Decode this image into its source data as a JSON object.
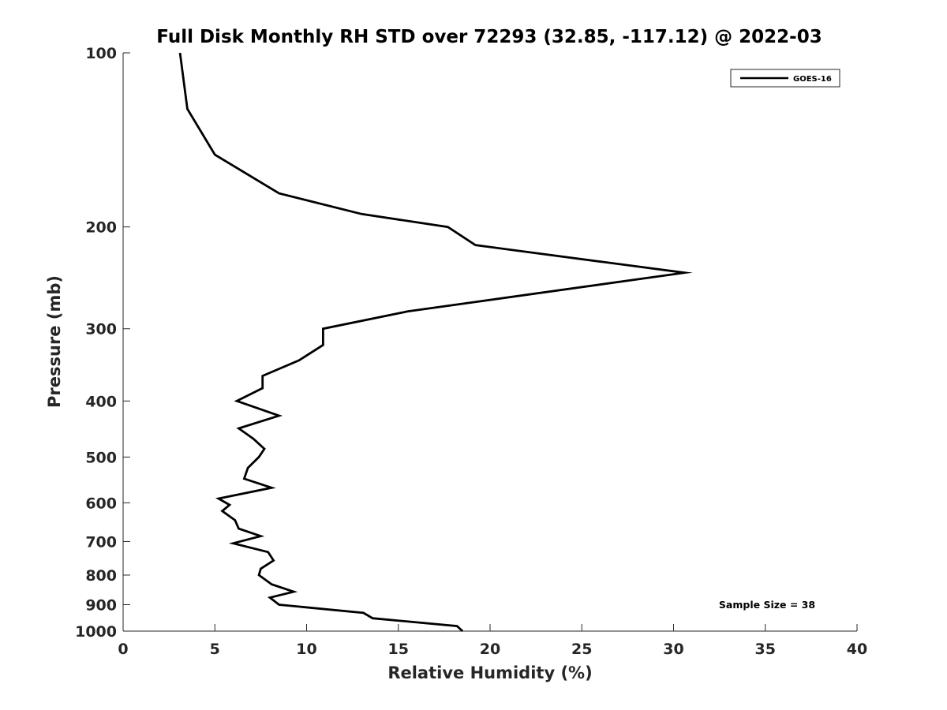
{
  "chart_data": {
    "type": "line",
    "title": "Full Disk Monthly RH STD over 72293 (32.85, -117.12) @ 2022-03",
    "xlabel": "Relative Humidity (%)",
    "ylabel": "Pressure (mb)",
    "xlim": [
      0,
      40
    ],
    "ylim": [
      100,
      1000
    ],
    "y_scale": "log",
    "y_reversed": true,
    "x_ticks": [
      0,
      5,
      10,
      15,
      20,
      25,
      30,
      35,
      40
    ],
    "y_ticks": [
      100,
      200,
      300,
      400,
      500,
      600,
      700,
      800,
      900,
      1000
    ],
    "grid": false,
    "legend_position": "top-right",
    "series": [
      {
        "name": "GOES-16",
        "color": "#000000",
        "points": [
          [
            3.1,
            100
          ],
          [
            3.5,
            125
          ],
          [
            5.0,
            150
          ],
          [
            8.5,
            175
          ],
          [
            13.0,
            190
          ],
          [
            17.7,
            200
          ],
          [
            19.2,
            215
          ],
          [
            30.6,
            240
          ],
          [
            15.5,
            280
          ],
          [
            10.9,
            300
          ],
          [
            10.9,
            320
          ],
          [
            9.6,
            340
          ],
          [
            7.6,
            362
          ],
          [
            7.6,
            380
          ],
          [
            6.2,
            400
          ],
          [
            8.5,
            424
          ],
          [
            6.3,
            446
          ],
          [
            7.1,
            465
          ],
          [
            7.7,
            484
          ],
          [
            7.4,
            500
          ],
          [
            6.8,
            522
          ],
          [
            6.6,
            545
          ],
          [
            8.1,
            565
          ],
          [
            5.2,
            590
          ],
          [
            5.8,
            605
          ],
          [
            5.4,
            620
          ],
          [
            6.1,
            643
          ],
          [
            6.3,
            665
          ],
          [
            7.5,
            685
          ],
          [
            6.0,
            705
          ],
          [
            7.9,
            730
          ],
          [
            8.2,
            755
          ],
          [
            7.5,
            780
          ],
          [
            7.4,
            800
          ],
          [
            8.1,
            830
          ],
          [
            9.3,
            855
          ],
          [
            8.0,
            875
          ],
          [
            8.5,
            900
          ],
          [
            13.1,
            930
          ],
          [
            13.6,
            950
          ],
          [
            18.2,
            980
          ],
          [
            18.5,
            1000
          ]
        ]
      }
    ],
    "annotation": "Sample Size = 38"
  }
}
